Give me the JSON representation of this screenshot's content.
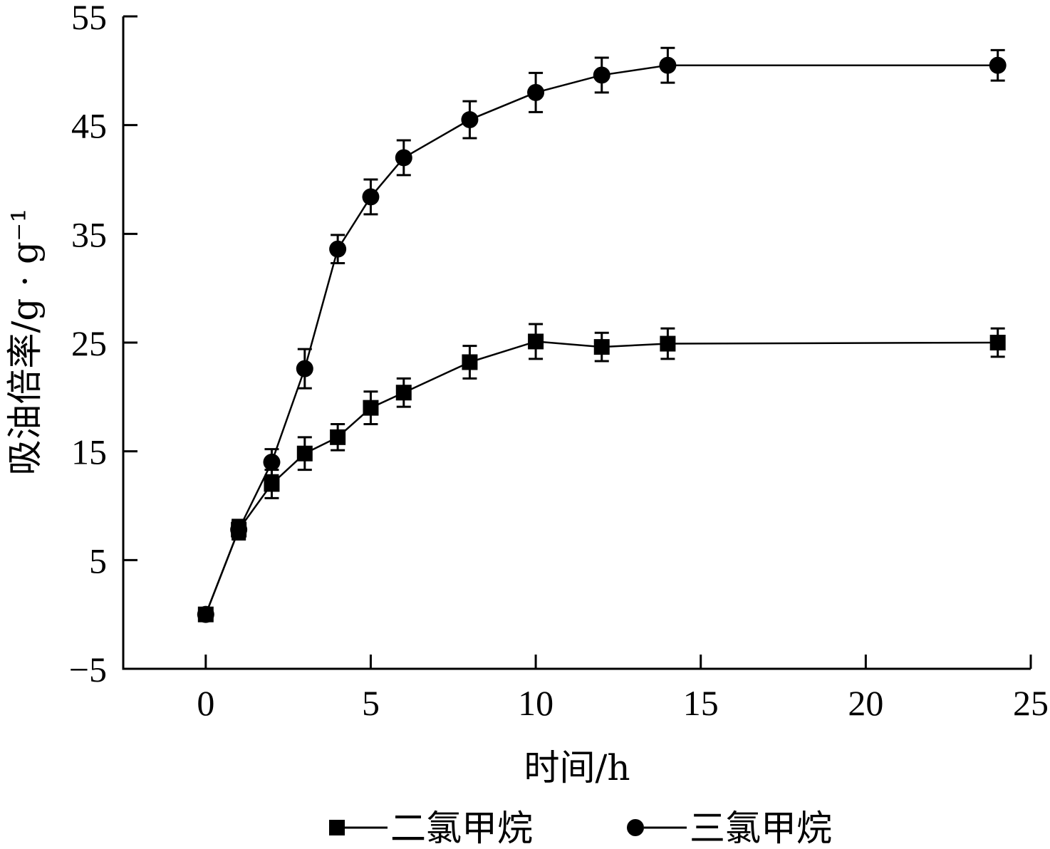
{
  "chart_data": {
    "type": "line",
    "title": "",
    "xlabel": "时间/h",
    "ylabel": "吸油倍率/g · g⁻¹",
    "xlim": [
      -2.5,
      25
    ],
    "ylim": [
      -5,
      55
    ],
    "xticks": [
      0,
      5,
      10,
      15,
      20,
      25
    ],
    "yticks": [
      -5,
      5,
      15,
      25,
      35,
      45,
      55
    ],
    "xtick_labels": [
      "0",
      "5",
      "10",
      "15",
      "20",
      "25"
    ],
    "ytick_labels": [
      "−5",
      "5",
      "15",
      "25",
      "35",
      "45",
      "55"
    ],
    "grid": false,
    "legend_position": "bottom",
    "series": [
      {
        "name": "二氯甲烷",
        "marker": "square",
        "color": "#000000",
        "x": [
          0,
          1,
          2,
          3,
          4,
          5,
          6,
          8,
          10,
          12,
          14,
          24
        ],
        "y": [
          0,
          7.8,
          12,
          14.8,
          16.3,
          19,
          20.4,
          23.2,
          25.1,
          24.6,
          24.9,
          25
        ],
        "error": [
          0.3,
          0.9,
          1.3,
          1.5,
          1.2,
          1.5,
          1.3,
          1.5,
          1.6,
          1.3,
          1.4,
          1.3
        ]
      },
      {
        "name": "三氯甲烷",
        "marker": "circle",
        "color": "#000000",
        "x": [
          0,
          1,
          2,
          3,
          4,
          5,
          6,
          8,
          10,
          12,
          14,
          24
        ],
        "y": [
          0,
          7.8,
          14,
          22.6,
          33.6,
          38.4,
          42,
          45.5,
          48,
          49.6,
          50.5,
          50.5
        ],
        "error": [
          0.3,
          0.8,
          1.2,
          1.8,
          1.3,
          1.6,
          1.6,
          1.7,
          1.8,
          1.6,
          1.6,
          1.4
        ]
      }
    ]
  }
}
